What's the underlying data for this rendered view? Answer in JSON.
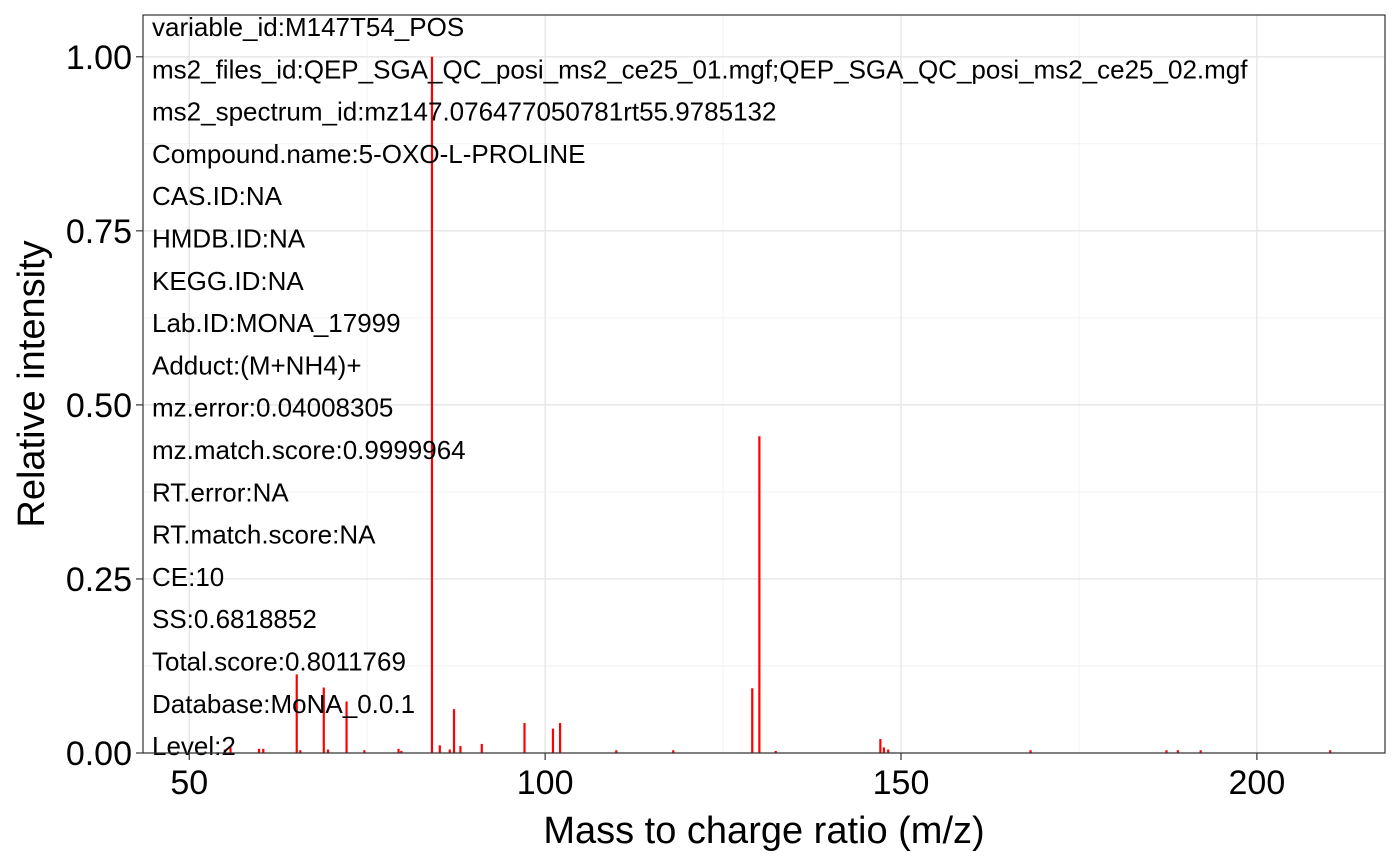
{
  "chart_data": {
    "type": "bar",
    "xlabel": "Mass to charge ratio (m/z)",
    "ylabel": "Relative intensity",
    "xlim": [
      43.5,
      218
    ],
    "ylim": [
      0,
      1.06
    ],
    "x_ticks": [
      50,
      100,
      150,
      200
    ],
    "x_tick_labels": [
      "50",
      "100",
      "150",
      "200"
    ],
    "y_ticks": [
      0,
      0.25,
      0.5,
      0.75,
      1.0
    ],
    "y_tick_labels": [
      "0.00",
      "0.25",
      "0.50",
      "0.75",
      "1.00"
    ],
    "grid": true,
    "bar_color": "#ff0000",
    "series": [
      {
        "x": [
          55,
          55.8,
          59.8,
          60.4,
          65.1,
          65.6,
          68.9,
          69.5,
          72.1,
          74.6,
          79.4,
          79.8,
          84.1,
          85.2,
          86.6,
          87.2,
          88.1,
          91.1,
          97.1,
          101.1,
          102.1,
          110.0,
          118.0,
          129.1,
          130.1,
          132.4,
          147.1,
          147.6,
          148.2,
          168.2,
          187.3,
          188.9,
          192.1,
          210.3
        ],
        "values": [
          0.005,
          0.008,
          0.006,
          0.006,
          0.113,
          0.004,
          0.094,
          0.005,
          0.074,
          0.004,
          0.006,
          0.003,
          1.0,
          0.011,
          0.005,
          0.063,
          0.01,
          0.013,
          0.043,
          0.035,
          0.043,
          0.004,
          0.004,
          0.093,
          0.455,
          0.003,
          0.02,
          0.008,
          0.005,
          0.004,
          0.004,
          0.004,
          0.004,
          0.004
        ]
      }
    ],
    "annotations": [
      "variable_id:M147T54_POS",
      "ms2_files_id:QEP_SGA_QC_posi_ms2_ce25_01.mgf;QEP_SGA_QC_posi_ms2_ce25_02.mgf",
      "ms2_spectrum_id:mz147.076477050781rt55.9785132",
      "Compound.name:5-OXO-L-PROLINE",
      "CAS.ID:NA",
      "HMDB.ID:NA",
      "KEGG.ID:NA",
      "Lab.ID:MONA_17999",
      "Adduct:(M+NH4)+",
      "mz.error:0.04008305",
      "mz.match.score:0.9999964",
      "RT.error:NA",
      "RT.match.score:NA",
      "CE:10",
      "SS:0.6818852",
      "Total.score:0.8011769",
      "Database:MoNA_0.0.1",
      "Level:2"
    ]
  }
}
